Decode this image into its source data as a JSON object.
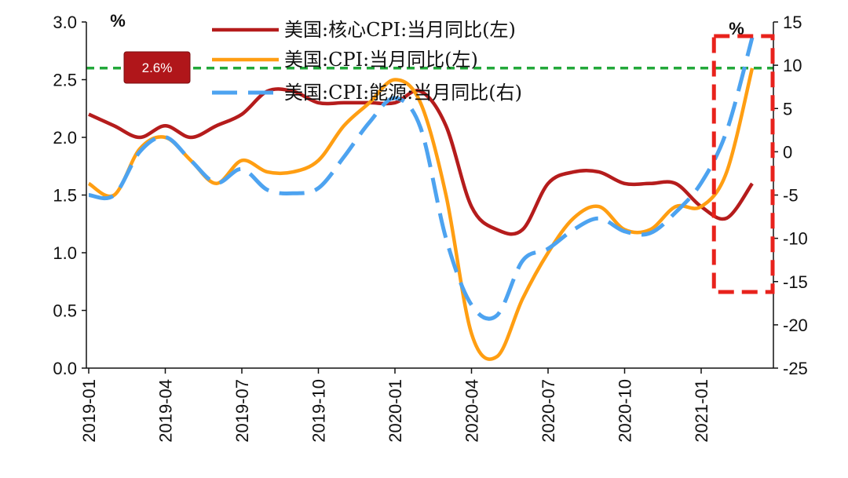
{
  "chart_data": {
    "type": "line",
    "title": "",
    "x_ticks": [
      "2019-01",
      "2019-04",
      "2019-07",
      "2019-10",
      "2020-01",
      "2020-04",
      "2020-07",
      "2020-10",
      "2021-01"
    ],
    "x_range": [
      "2019-01",
      "2021-04"
    ],
    "y_left": {
      "unit": "%",
      "range": [
        0,
        3
      ],
      "ticks": [
        "3.0",
        "2.5",
        "2.0",
        "1.5",
        "1.0",
        "0.5",
        "0.0"
      ]
    },
    "y_right": {
      "unit": "%",
      "range": [
        -25,
        15
      ],
      "ticks": [
        "15",
        "10",
        "5",
        "0",
        "-5",
        "-10",
        "-15",
        "-20",
        "-25"
      ]
    },
    "reference_line": {
      "value": 2.6,
      "label": "2.6%",
      "axis": "left",
      "color": "#22a83a",
      "style": "dashed"
    },
    "highlight_box": {
      "from_month": "2021-02",
      "to_month": "2021-04",
      "color": "#e8221c",
      "style": "dashed"
    },
    "series": [
      {
        "name": "美国:核心CPI:当月同比(左)",
        "axis": "left",
        "color": "#b51c1c",
        "style": "solid",
        "values": [
          2.2,
          2.1,
          2.0,
          2.1,
          2.0,
          2.1,
          2.2,
          2.4,
          2.4,
          2.3,
          2.3,
          2.3,
          2.3,
          2.4,
          2.1,
          1.4,
          1.2,
          1.2,
          1.6,
          1.7,
          1.7,
          1.6,
          1.6,
          1.6,
          1.4,
          1.3,
          1.6
        ]
      },
      {
        "name": "美国:CPI:当月同比(左)",
        "axis": "left",
        "color": "#ff9e12",
        "style": "solid",
        "values": [
          1.6,
          1.5,
          1.9,
          2.0,
          1.8,
          1.6,
          1.8,
          1.7,
          1.7,
          1.8,
          2.1,
          2.3,
          2.5,
          2.3,
          1.5,
          0.3,
          0.1,
          0.6,
          1.0,
          1.3,
          1.4,
          1.2,
          1.2,
          1.4,
          1.4,
          1.7,
          2.6
        ]
      },
      {
        "name": "美国:CPI:能源:当月同比(右)",
        "axis": "right",
        "color": "#4da3f0",
        "style": "dashed",
        "values": [
          -5.0,
          -5.0,
          0.0,
          1.7,
          -1.0,
          -3.6,
          -2.0,
          -4.4,
          -4.8,
          -4.2,
          -0.6,
          3.4,
          6.2,
          2.8,
          -10.0,
          -17.7,
          -18.9,
          -12.6,
          -11.2,
          -9.0,
          -7.7,
          -9.2,
          -9.4,
          -7.0,
          -3.6,
          2.4,
          13.2
        ]
      }
    ]
  }
}
